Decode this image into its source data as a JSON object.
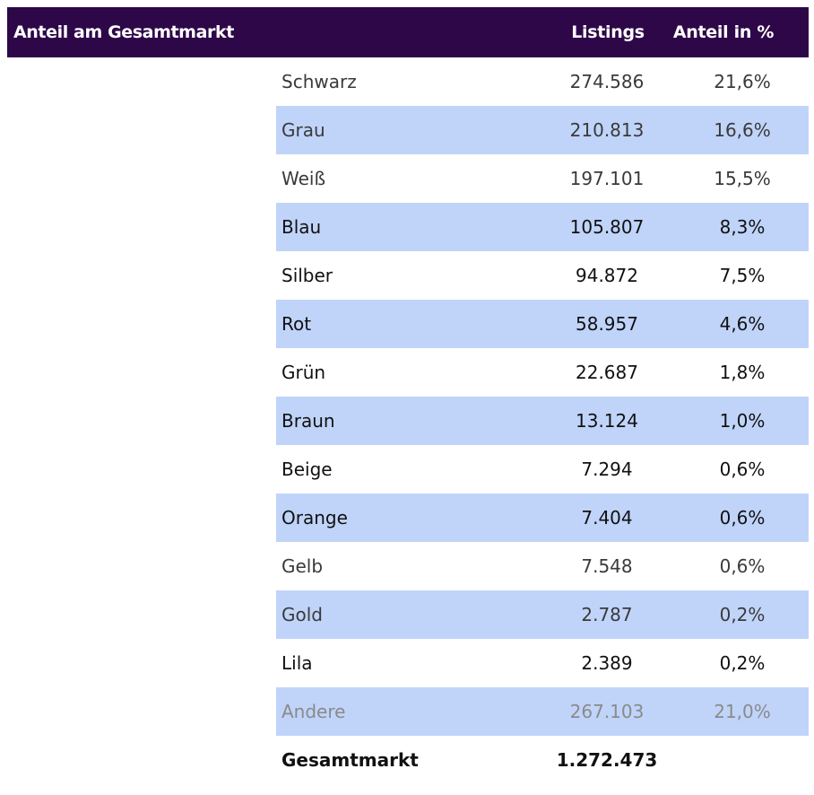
{
  "chart_data": {
    "type": "table",
    "header": {
      "title": "Anteil am Gesamtmarkt",
      "col_listings": "Listings",
      "col_share": "Anteil in %"
    },
    "rows": [
      {
        "label": "Schwarz",
        "listings": "274.586",
        "share": "21,6%"
      },
      {
        "label": "Grau",
        "listings": "210.813",
        "share": "16,6%"
      },
      {
        "label": "Weiß",
        "listings": "197.101",
        "share": "15,5%"
      },
      {
        "label": "Blau",
        "listings": "105.807",
        "share": "8,3%"
      },
      {
        "label": "Silber",
        "listings": "94.872",
        "share": "7,5%"
      },
      {
        "label": "Rot",
        "listings": "58.957",
        "share": "4,6%"
      },
      {
        "label": "Grün",
        "listings": "22.687",
        "share": "1,8%"
      },
      {
        "label": "Braun",
        "listings": "13.124",
        "share": "1,0%"
      },
      {
        "label": "Beige",
        "listings": "7.294",
        "share": "0,6%"
      },
      {
        "label": "Orange",
        "listings": "7.404",
        "share": "0,6%"
      },
      {
        "label": "Gelb",
        "listings": "7.548",
        "share": "0,6%"
      },
      {
        "label": "Gold",
        "listings": "2.787",
        "share": "0,2%"
      },
      {
        "label": "Lila",
        "listings": "2.389",
        "share": "0,2%"
      },
      {
        "label": "Andere",
        "listings": "267.103",
        "share": "21,0%"
      }
    ],
    "total": {
      "label": "Gesamtmarkt",
      "listings": "1.272.473"
    },
    "colors": {
      "header_bg": "#2e0749",
      "header_text": "#ffffff",
      "stripe": "#c0d4fa",
      "muted_text": "#8a8a8a"
    }
  }
}
